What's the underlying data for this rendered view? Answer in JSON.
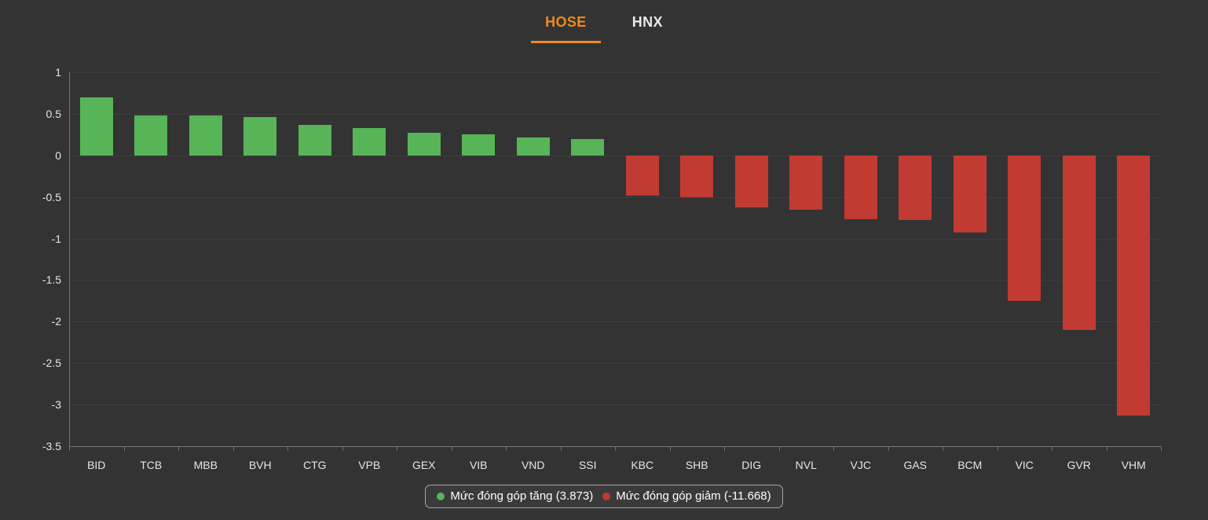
{
  "tabs": [
    {
      "label": "HOSE",
      "active": true
    },
    {
      "label": "HNX",
      "active": false
    }
  ],
  "colors": {
    "background": "#333333",
    "accent_tab": "#f08a1d",
    "inactive_tab": "#e8e8e8",
    "positive": "#57b457",
    "negative": "#c13b33",
    "axis": "#737373",
    "gridline": "#3e3e3e",
    "label_text": "#e6e6e6"
  },
  "chart_data": {
    "type": "bar",
    "title": "",
    "xlabel": "",
    "ylabel": "",
    "categories": [
      "BID",
      "TCB",
      "MBB",
      "BVH",
      "CTG",
      "VPB",
      "GEX",
      "VIB",
      "VND",
      "SSI",
      "KBC",
      "SHB",
      "DIG",
      "NVL",
      "VJC",
      "GAS",
      "BCM",
      "VIC",
      "GVR",
      "VHM"
    ],
    "values": [
      0.7,
      0.48,
      0.48,
      0.46,
      0.37,
      0.33,
      0.27,
      0.25,
      0.22,
      0.2,
      -0.48,
      -0.5,
      -0.63,
      -0.65,
      -0.77,
      -0.78,
      -0.93,
      -1.75,
      -2.1,
      -3.13
    ],
    "ylim": [
      -3.5,
      1
    ],
    "yticks": [
      1,
      0.5,
      0,
      -0.5,
      -1,
      -1.5,
      -2,
      -2.5,
      -3,
      -3.5
    ],
    "grid": true,
    "legend_position": "bottom",
    "legend": [
      {
        "label": "Mức đóng góp tăng (3.873)",
        "color": "#57b457"
      },
      {
        "label": "Mức đóng góp giảm (-11.668)",
        "color": "#c13b33"
      }
    ]
  }
}
